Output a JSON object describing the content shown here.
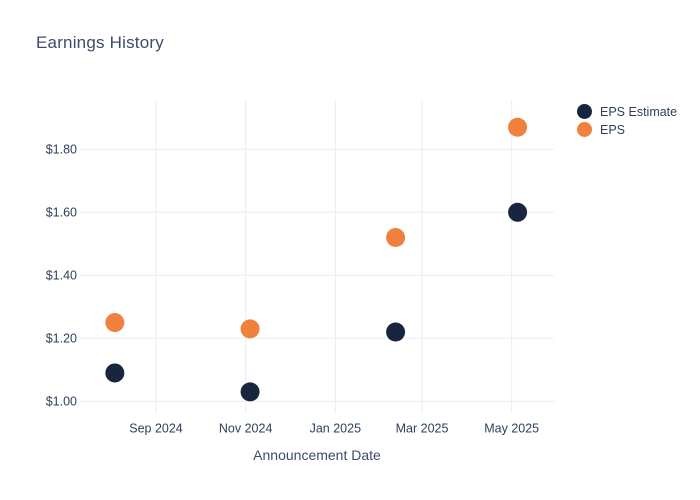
{
  "title": "Earnings History",
  "chart_data": {
    "type": "scatter",
    "title": "Earnings History",
    "xlabel": "Announcement Date",
    "ylabel": "",
    "grid": true,
    "legend_position": "outside-top-right",
    "ylim": [
      0.96,
      1.96
    ],
    "y_ticks": [
      {
        "label": "$1.00",
        "value": 1.0
      },
      {
        "label": "$1.20",
        "value": 1.2
      },
      {
        "label": "$1.40",
        "value": 1.4
      },
      {
        "label": "$1.60",
        "value": 1.6
      },
      {
        "label": "$1.80",
        "value": 1.8
      }
    ],
    "x_ticks": [
      {
        "label": "Sep 2024",
        "date": "2024-09-01"
      },
      {
        "label": "Nov 2024",
        "date": "2024-11-01"
      },
      {
        "label": "Jan 2025",
        "date": "2025-01-01"
      },
      {
        "label": "Mar 2025",
        "date": "2025-03-01"
      },
      {
        "label": "May 2025",
        "date": "2025-05-01"
      }
    ],
    "series": [
      {
        "name": "EPS Estimate",
        "color": "#17263e",
        "points": [
          {
            "date": "2024-08-04",
            "value": 1.09
          },
          {
            "date": "2024-11-04",
            "value": 1.03
          },
          {
            "date": "2025-02-11",
            "value": 1.22
          },
          {
            "date": "2025-05-05",
            "value": 1.6
          }
        ]
      },
      {
        "name": "EPS",
        "color": "#f0813c",
        "points": [
          {
            "date": "2024-08-04",
            "value": 1.25
          },
          {
            "date": "2024-11-04",
            "value": 1.23
          },
          {
            "date": "2025-02-11",
            "value": 1.52
          },
          {
            "date": "2025-05-05",
            "value": 1.87
          }
        ]
      }
    ]
  },
  "colors": {
    "estimate": "#17263e",
    "eps": "#f0813c",
    "grid": "#e8edf4",
    "title_text": "#3d4b6d",
    "tick_text": "#2f3f5a",
    "background": "#ffffff"
  }
}
